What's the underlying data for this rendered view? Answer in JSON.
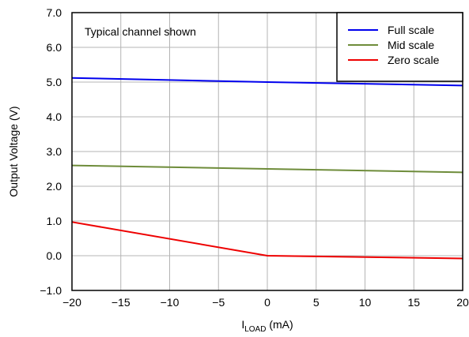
{
  "chart_data": {
    "type": "line",
    "title": "",
    "xlabel": {
      "main": "I",
      "sub": "LOAD",
      "unit": " (mA)"
    },
    "ylabel": "Output Voltage (V)",
    "xlim": [
      -20,
      20
    ],
    "ylim": [
      -1.0,
      7.0
    ],
    "xticks": [
      -20,
      -15,
      -10,
      -5,
      0,
      5,
      10,
      15,
      20
    ],
    "xtick_labels": [
      "−20",
      "−15",
      "−10",
      "−5",
      "0",
      "5",
      "10",
      "15",
      "20"
    ],
    "yticks": [
      -1.0,
      0.0,
      1.0,
      2.0,
      3.0,
      4.0,
      5.0,
      6.0,
      7.0
    ],
    "ytick_labels": [
      "−1.0",
      "0.0",
      "1.0",
      "2.0",
      "3.0",
      "4.0",
      "5.0",
      "6.0",
      "7.0"
    ],
    "grid": true,
    "legend_position": "top-right",
    "annotation": "Typical channel shown",
    "series": [
      {
        "name": "Full scale",
        "color": "#0000ee",
        "x": [
          -20,
          0,
          20
        ],
        "y": [
          5.12,
          5.0,
          4.9
        ]
      },
      {
        "name": "Mid scale",
        "color": "#6e8c3a",
        "x": [
          -20,
          0,
          20
        ],
        "y": [
          2.6,
          2.5,
          2.4
        ]
      },
      {
        "name": "Zero scale",
        "color": "#ee0000",
        "x": [
          -20,
          0,
          20
        ],
        "y": [
          0.97,
          0.0,
          -0.08
        ]
      }
    ]
  }
}
